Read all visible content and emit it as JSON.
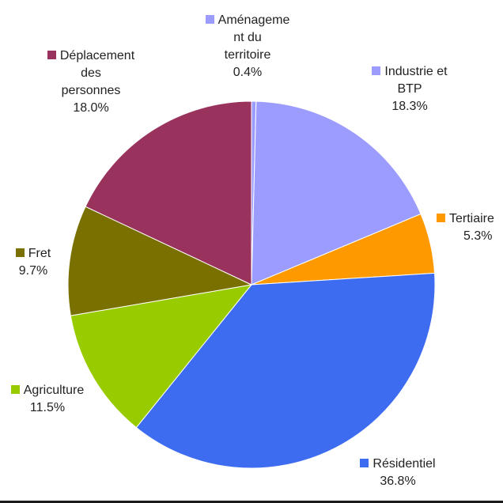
{
  "chart_data": {
    "type": "pie",
    "title": "",
    "slices": [
      {
        "label": "Aménagement du territoire",
        "label_lines": [
          "Aménageme",
          "nt du",
          "territoire"
        ],
        "value": 0.4,
        "value_text": "0.4%",
        "color": "#9c9cff"
      },
      {
        "label": "Industrie et BTP",
        "label_lines": [
          "Industrie et",
          "BTP"
        ],
        "value": 18.3,
        "value_text": "18.3%",
        "color": "#9c9cff"
      },
      {
        "label": "Tertiaire",
        "label_lines": [
          "Tertiaire"
        ],
        "value": 5.3,
        "value_text": "5.3%",
        "color": "#ff9900"
      },
      {
        "label": "Résidentiel",
        "label_lines": [
          "Résidentiel"
        ],
        "value": 36.8,
        "value_text": "36.8%",
        "color": "#3d6cf0"
      },
      {
        "label": "Agriculture",
        "label_lines": [
          "Agriculture"
        ],
        "value": 11.5,
        "value_text": "11.5%",
        "color": "#99cc00"
      },
      {
        "label": "Fret",
        "label_lines": [
          "Fret"
        ],
        "value": 9.7,
        "value_text": "9.7%",
        "color": "#7a7000"
      },
      {
        "label": "Déplacement des personnes",
        "label_lines": [
          "Déplacement",
          "des",
          "personnes"
        ],
        "value": 18.0,
        "value_text": "18.0%",
        "color": "#99335e"
      }
    ]
  }
}
